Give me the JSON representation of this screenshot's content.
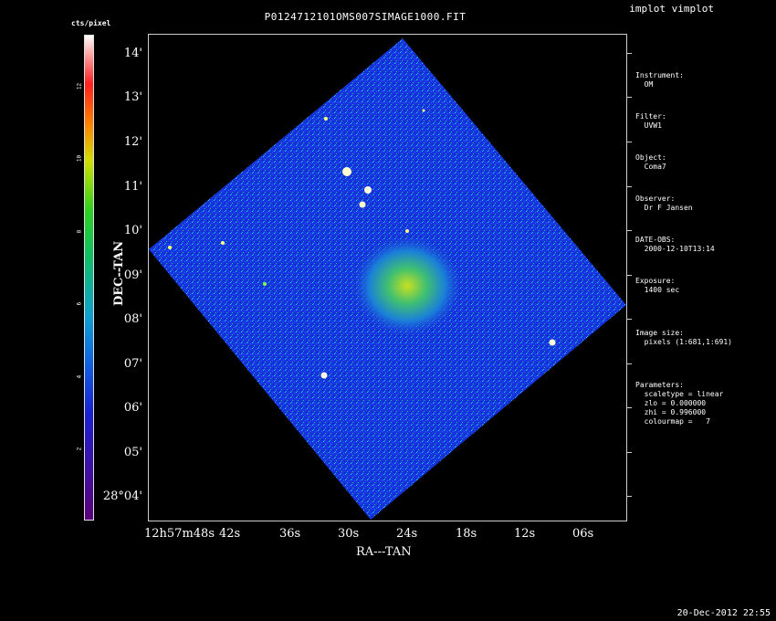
{
  "title": "P0124712101OMS007SIMAGE1000.FIT",
  "app_label": "implot vimplot",
  "colorbar": {
    "title": "cts/pixel",
    "ticks": [
      "2",
      "4",
      "6",
      "8",
      "10",
      "12"
    ]
  },
  "axes": {
    "x_label": "RA---TAN",
    "y_label": "DEC--TAN",
    "y_ticks": [
      "14'",
      "13'",
      "12'",
      "11'",
      "10'",
      "09'",
      "08'",
      "07'",
      "06'",
      "05'",
      "28°04'"
    ],
    "x_ticks": [
      "12h57m48s",
      "42s",
      "36s",
      "30s",
      "24s",
      "18s",
      "12s",
      "06s"
    ]
  },
  "info": {
    "instrument_label": "Instrument:",
    "instrument": "OM",
    "filter_label": "Filter:",
    "filter": "UVW1",
    "object_label": "Object:",
    "object": "Coma7",
    "observer_label": "Observer:",
    "observer": "Dr F Jansen",
    "date_obs_label": "DATE-OBS:",
    "date_obs": "2000-12-10T13:14",
    "exposure_label": "Exposure:",
    "exposure": "1400 sec",
    "image_size_label": "Image size:",
    "image_size": "pixels (1:681,1:691)",
    "params_label": "Parameters:",
    "scaletype": "scaletype = linear",
    "zlo": "zlo = 0.000000",
    "zhi": "zhi = 0.996000",
    "colourmap": "colourmap =   7"
  },
  "timestamp": "20-Dec-2012 22:55"
}
